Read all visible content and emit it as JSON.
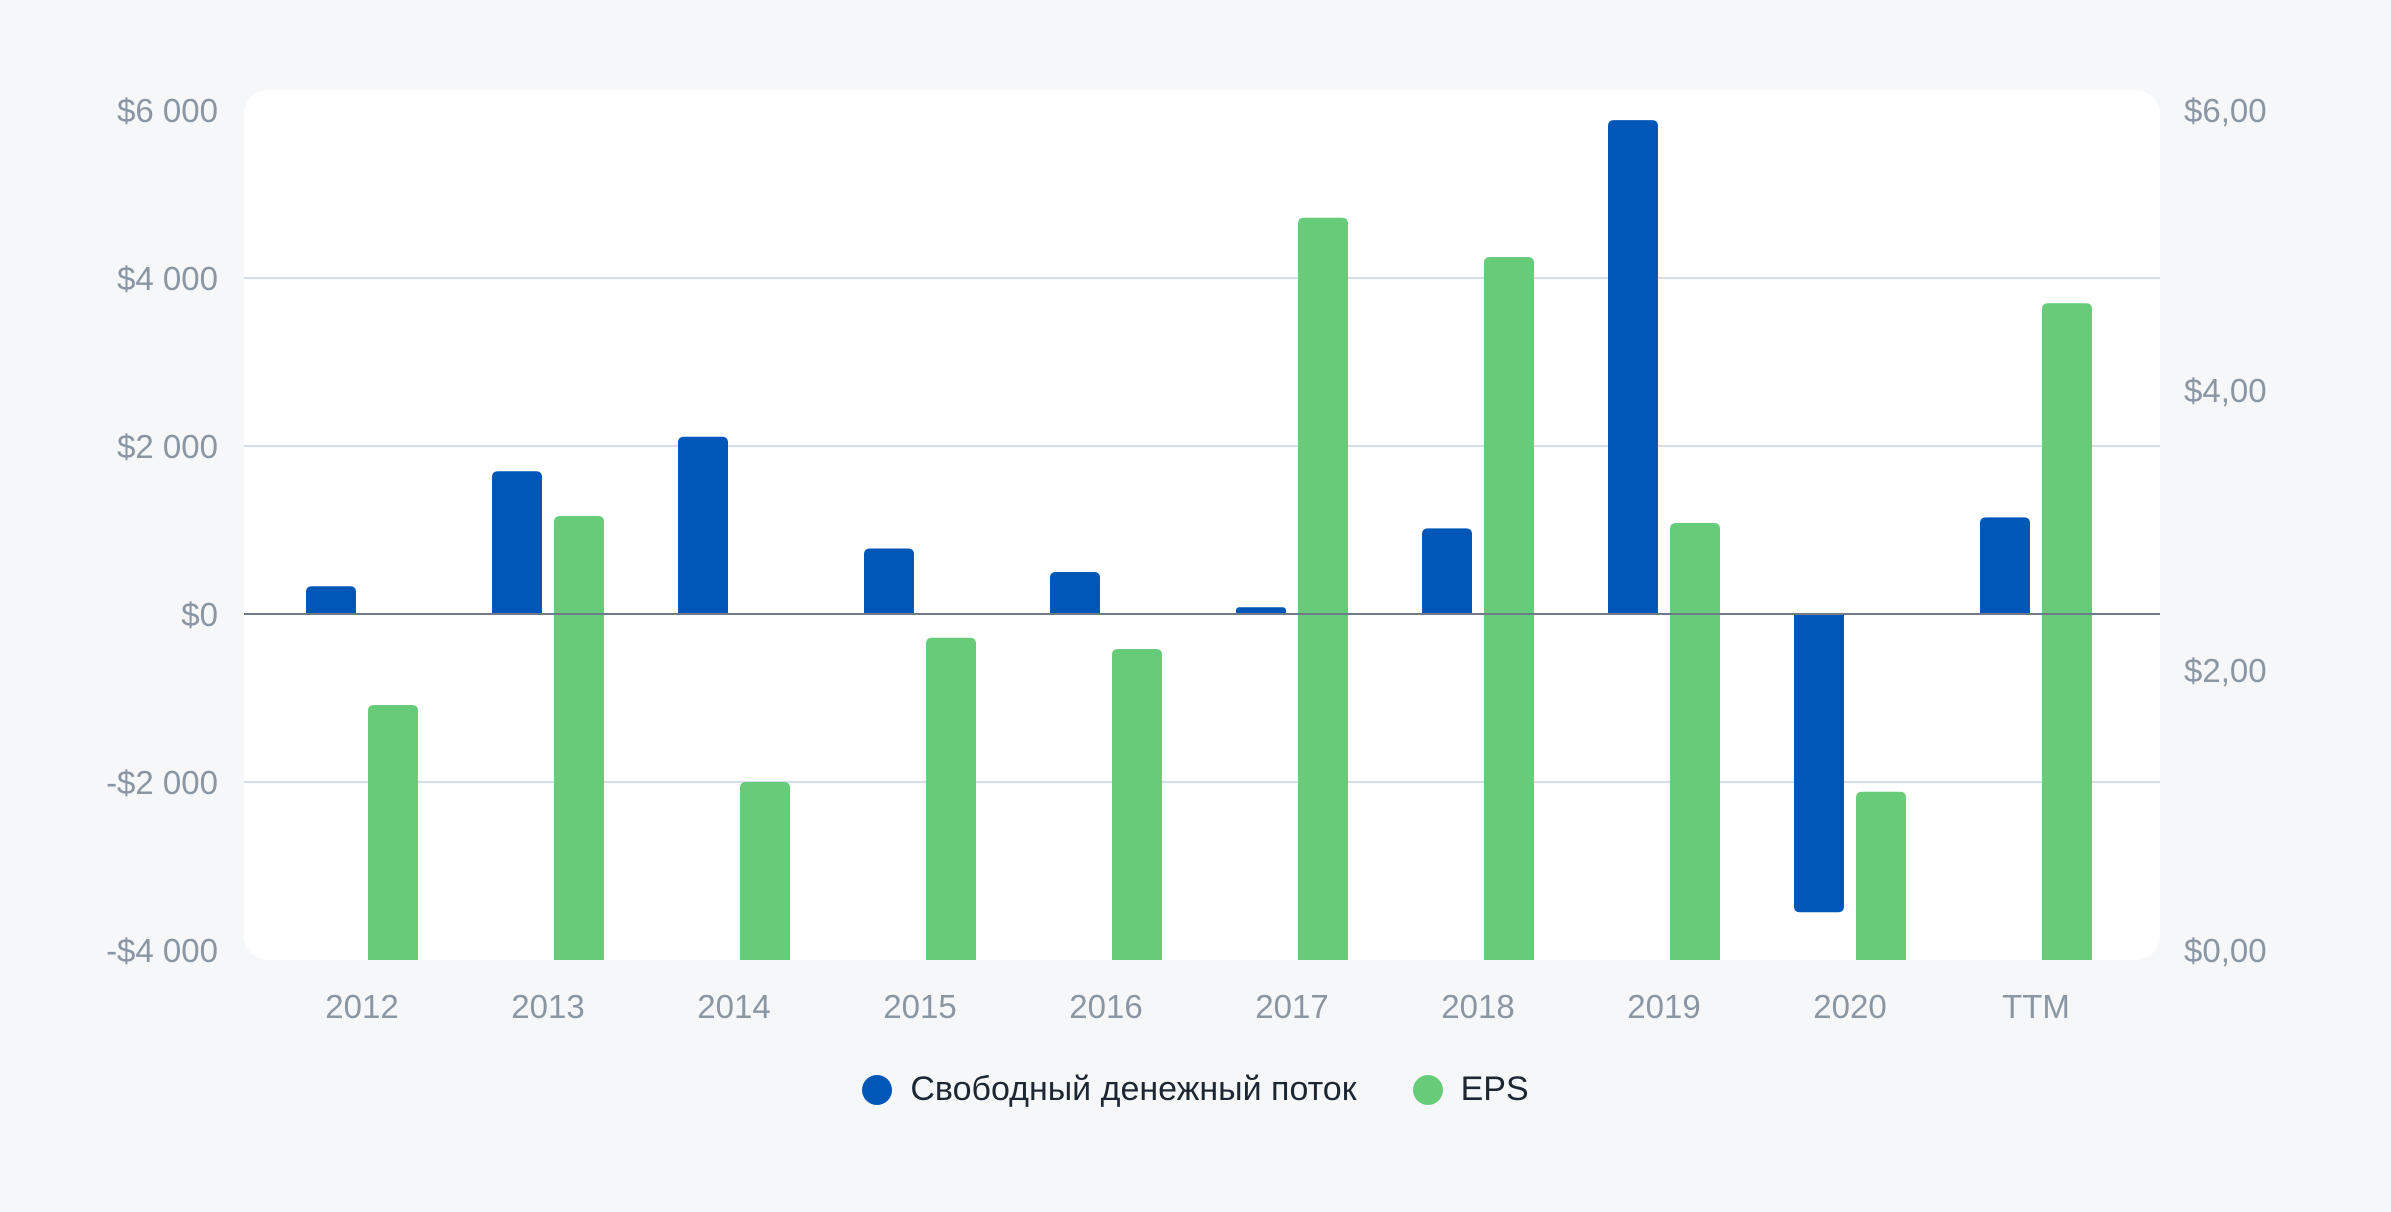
{
  "chart_data": {
    "type": "bar",
    "categories": [
      "2012",
      "2013",
      "2014",
      "2015",
      "2016",
      "2017",
      "2018",
      "2019",
      "2020",
      "TTM"
    ],
    "series": [
      {
        "name": "Свободный денежный поток",
        "axis": "left",
        "color": "#0057b8",
        "values": [
          330,
          1700,
          2110,
          780,
          500,
          80,
          1020,
          5880,
          -3550,
          1150
        ]
      },
      {
        "name": "EPS",
        "axis": "right",
        "color": "#66cc7a",
        "values": [
          1.75,
          3.1,
          1.2,
          2.23,
          2.15,
          5.23,
          4.95,
          3.05,
          1.13,
          4.62
        ]
      }
    ],
    "left_axis": {
      "ylim": [
        -4000,
        6000
      ],
      "ticks": [
        6000,
        4000,
        2000,
        0,
        -2000,
        -4000
      ],
      "tick_labels": [
        "$6 000",
        "$4 000",
        "$2 000",
        "$0",
        "-$2 000",
        "-$4 000"
      ]
    },
    "right_axis": {
      "ylim": [
        0,
        6
      ],
      "ticks": [
        6,
        4,
        2,
        0
      ],
      "tick_labels": [
        "$6,00",
        "$4,00",
        "$2,00",
        "$0,00"
      ]
    },
    "grid": true,
    "legend_position": "bottom-center",
    "title": "",
    "xlabel": "",
    "ylabel": ""
  },
  "colors": {
    "background": "#f6f7f9",
    "plot_background": "#ffffff",
    "gridline": "#d5dde8",
    "zero_line": "#6f7b88",
    "tick_text": "#8a96a3",
    "legend_text": "#1d2733"
  }
}
